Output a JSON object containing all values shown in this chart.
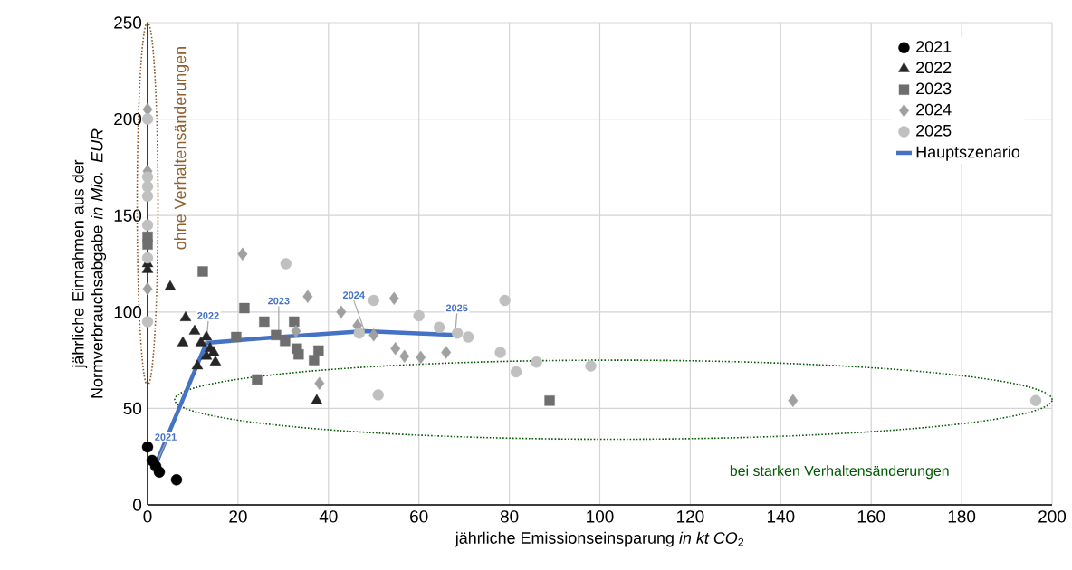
{
  "chart_data": {
    "type": "scatter",
    "xlabel": "jährliche Emissionseinsparung      *in kt CO*$_{2}$",
    "ylabel": "jährliche Einnahmen aus der Normverbrauchsabgabe *in Mio. EUR*",
    "xlim": [
      0,
      200
    ],
    "ylim": [
      0,
      250
    ],
    "xticks": [
      0,
      20,
      40,
      60,
      80,
      100,
      120,
      140,
      160,
      180,
      200
    ],
    "yticks": [
      0,
      50,
      100,
      150,
      200,
      250
    ],
    "grid": true,
    "legend": "top right",
    "series": [
      {
        "name": "2021",
        "color": "#000000",
        "marker": "circle",
        "x": [
          0,
          1,
          1.8,
          2.6,
          6.4
        ],
        "values": [
          30,
          23,
          20,
          17,
          13
        ]
      },
      {
        "name": "2022",
        "color": "#262626",
        "marker": "triangle",
        "x": [
          0,
          0,
          5,
          8.4,
          7.8,
          10.4,
          11,
          11.8,
          13,
          13.8,
          13,
          14.6,
          15,
          37.4
        ],
        "values": [
          125,
          122,
          113,
          97,
          84,
          90,
          72,
          84,
          87,
          81,
          77,
          79,
          74,
          54
        ]
      },
      {
        "name": "2023",
        "color": "#6e6e6e",
        "marker": "square",
        "x": [
          0,
          0,
          12.2,
          21.4,
          19.6,
          25.8,
          28.4,
          32.4,
          30.4,
          33,
          33.4,
          36.8,
          37.8,
          24.2,
          88.9
        ],
        "values": [
          139,
          135,
          121,
          102,
          87,
          95,
          88,
          95,
          85,
          81,
          78,
          75,
          80,
          65,
          54
        ]
      },
      {
        "name": "2024",
        "color": "#a0a0a0",
        "marker": "diamond",
        "x": [
          0,
          0,
          0,
          21,
          35.4,
          42.8,
          32.8,
          46.4,
          50,
          54.5,
          54.8,
          56.8,
          60.4,
          66,
          38,
          142.7
        ],
        "values": [
          205,
          173,
          112,
          130,
          108,
          100,
          90,
          93,
          88,
          107,
          81,
          77,
          76.5,
          79,
          63,
          54
        ]
      },
      {
        "name": "2025",
        "color": "#c0c0c0",
        "marker": "circle",
        "x": [
          0,
          0,
          0,
          0,
          0,
          0,
          0,
          30.6,
          50,
          46.8,
          60,
          64.5,
          79,
          78,
          81.5,
          51,
          68.5,
          70.9,
          86,
          98,
          196.4
        ],
        "values": [
          200,
          170,
          165,
          160,
          145,
          128,
          95,
          125,
          106,
          89,
          98,
          92,
          106,
          79,
          69,
          57,
          89,
          87,
          74,
          72,
          54
        ]
      },
      {
        "name": "Hauptszenario",
        "type": "line",
        "color": "#4472c4",
        "marker": "none",
        "x": [
          2,
          13,
          29,
          48,
          68
        ],
        "values": [
          22,
          84,
          87,
          90,
          88
        ]
      }
    ],
    "annotations": [
      "ohne Verhaltensänderungen",
      "bei starken Verhaltensänderungen",
      {
        "text": "2021",
        "x": 2,
        "y": 22
      },
      {
        "text": "2022",
        "x": 13,
        "y": 84
      },
      {
        "text": "2023",
        "x": 29,
        "y": 87
      },
      {
        "text": "2024",
        "x": 48,
        "y": 90
      },
      {
        "text": "2025",
        "x": 68,
        "y": 88
      }
    ]
  }
}
